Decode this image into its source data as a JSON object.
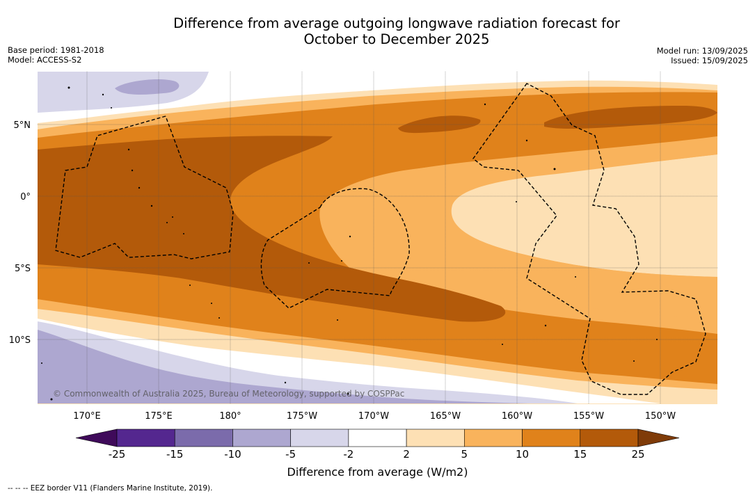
{
  "title_line1": "Difference from average outgoing longwave radiation forecast for",
  "title_line2": "October to December 2025",
  "base_period": "Base period: 1981-2018",
  "model": "Model: ACCESS-S2",
  "model_run": "Model run: 13/09/2025",
  "issued": "Issued: 15/09/2025",
  "lat_labels": [
    "5°N",
    "0°",
    "5°S",
    "10°S"
  ],
  "lon_labels": [
    "170°E",
    "175°E",
    "180°",
    "175°W",
    "170°W",
    "165°W",
    "160°W",
    "155°W",
    "150°W"
  ],
  "copyright": "© Commonwealth of Australia 2025, Bureau of Meteorology, supported by COSPPac",
  "colorbar": {
    "ticks": [
      "-25",
      "-15",
      "-10",
      "-5",
      "-2",
      "2",
      "5",
      "10",
      "15",
      "25"
    ],
    "colors": [
      "#3f0a5a",
      "#54278f",
      "#7b6bab",
      "#ada7d0",
      "#d7d6ea",
      "#ffffff",
      "#fde0b4",
      "#f9b35c",
      "#e0821b",
      "#b35a0a",
      "#7f3b08"
    ],
    "label": "Difference from average (W/m2)"
  },
  "footer": "--  --  -- EEZ border V11 (Flanders Marine Institute, 2019)."
}
